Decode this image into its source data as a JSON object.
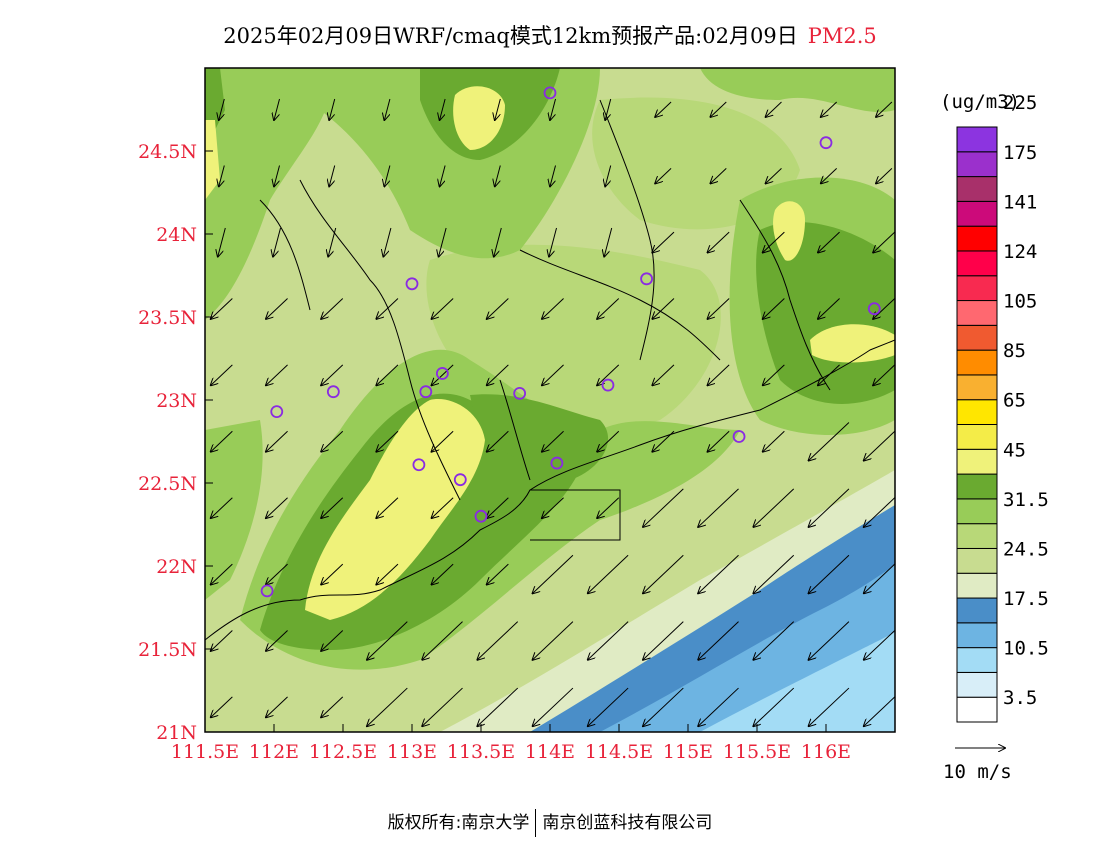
{
  "title": {
    "main": "2025年02月09日WRF/cmaq模式12km预报产品:02月09日",
    "species": "PM2.5"
  },
  "map": {
    "lon_range": [
      111.5,
      116.5
    ],
    "lat_range": [
      21,
      25
    ],
    "y_ticks": [
      {
        "lat": 21,
        "label": "21N"
      },
      {
        "lat": 21.5,
        "label": "21.5N"
      },
      {
        "lat": 22,
        "label": "22N"
      },
      {
        "lat": 22.5,
        "label": "22.5N"
      },
      {
        "lat": 23,
        "label": "23N"
      },
      {
        "lat": 23.5,
        "label": "23.5N"
      },
      {
        "lat": 24,
        "label": "24N"
      },
      {
        "lat": 24.5,
        "label": "24.5N"
      }
    ],
    "x_ticks": [
      {
        "lon": 111.5,
        "label": "111.5E"
      },
      {
        "lon": 112,
        "label": "112E"
      },
      {
        "lon": 112.5,
        "label": "112.5E"
      },
      {
        "lon": 113,
        "label": "113E"
      },
      {
        "lon": 113.5,
        "label": "113.5E"
      },
      {
        "lon": 114,
        "label": "114E"
      },
      {
        "lon": 114.5,
        "label": "114.5E"
      },
      {
        "lon": 115,
        "label": "115E"
      },
      {
        "lon": 115.5,
        "label": "115.5E"
      },
      {
        "lon": 116,
        "label": "116E"
      }
    ],
    "stations": [
      {
        "lon": 114.0,
        "lat": 24.85
      },
      {
        "lon": 116.0,
        "lat": 24.55
      },
      {
        "lon": 113.0,
        "lat": 23.7
      },
      {
        "lon": 114.7,
        "lat": 23.73
      },
      {
        "lon": 116.35,
        "lat": 23.55
      },
      {
        "lon": 113.22,
        "lat": 23.16
      },
      {
        "lon": 112.43,
        "lat": 23.05
      },
      {
        "lon": 113.1,
        "lat": 23.05
      },
      {
        "lon": 113.78,
        "lat": 23.04
      },
      {
        "lon": 114.42,
        "lat": 23.09
      },
      {
        "lon": 112.02,
        "lat": 22.93
      },
      {
        "lon": 115.37,
        "lat": 22.78
      },
      {
        "lon": 113.05,
        "lat": 22.61
      },
      {
        "lon": 114.05,
        "lat": 22.62
      },
      {
        "lon": 113.35,
        "lat": 22.52
      },
      {
        "lon": 113.5,
        "lat": 22.3
      },
      {
        "lon": 111.95,
        "lat": 21.85
      }
    ],
    "wind_direction": "from NE (arrows point SW)",
    "wind_arrow_spacing_deg": 0.4
  },
  "colorbar": {
    "unit": "(ug/m3)",
    "colors": [
      "#ffffff",
      "#d8eef8",
      "#a3dcf5",
      "#6db4e2",
      "#4a8ec8",
      "#e0ebc4",
      "#c8dc90",
      "#b8d878",
      "#98cc58",
      "#6aaa30",
      "#eff27a",
      "#f4ec48",
      "#ffe600",
      "#f9b030",
      "#ff8c00",
      "#f05a30",
      "#ff6870",
      "#f82a50",
      "#ff004a",
      "#ff0000",
      "#cc0a7a",
      "#a8306a",
      "#9b30cc",
      "#8c34e0"
    ],
    "labels": [
      "3.5",
      "10.5",
      "17.5",
      "24.5",
      "31.5",
      "45",
      "65",
      "85",
      "105",
      "124",
      "141",
      "175",
      "225"
    ]
  },
  "wind_scale": {
    "label": "10 m/s"
  },
  "footer": {
    "left": "版权所有:南京大学",
    "right": "南京创蓝科技有限公司"
  }
}
